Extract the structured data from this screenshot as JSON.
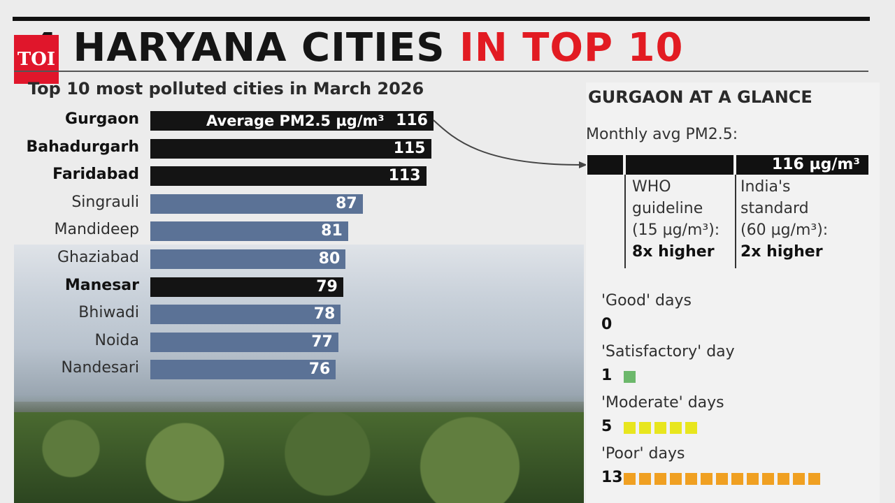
{
  "header": {
    "title_leading": "4",
    "title_dark": "HARYANA CITIES",
    "title_red": "IN TOP 10",
    "logo_text": "TOI",
    "subtitle": "Top 10 most polluted cities in March 2026"
  },
  "colors": {
    "highlight_bar": "#141414",
    "other_bar": "#5b7296",
    "title_red": "#e21b22",
    "logo_red": "#e0162b",
    "satisfactory": "#6cb86b",
    "moderate": "#e8e61e",
    "poor": "#f0a022"
  },
  "chart_data": {
    "type": "bar",
    "orientation": "horizontal",
    "title": "Top 10 most polluted cities in March 2026",
    "bar_note": "Average PM2.5 µg/m³",
    "categories": [
      "Gurgaon",
      "Bahadurgarh",
      "Faridabad",
      "Singrauli",
      "Mandideep",
      "Ghaziabad",
      "Manesar",
      "Bhiwadi",
      "Noida",
      "Nandesari"
    ],
    "values": [
      116,
      115,
      113,
      87,
      81,
      80,
      79,
      78,
      77,
      76
    ],
    "highlighted": [
      true,
      true,
      true,
      false,
      false,
      false,
      true,
      false,
      false,
      false
    ],
    "xlim": [
      0,
      116
    ],
    "grid": false
  },
  "glance": {
    "title": "GURGAON AT A GLANCE",
    "subtitle": "Monthly avg PM2.5:",
    "value_label": "116 µg/m³",
    "who": {
      "line1": "WHO",
      "line2": "guideline",
      "line3": "(15 µg/m³):",
      "result": "8x higher"
    },
    "india": {
      "line1": "India's",
      "line2": "standard",
      "line3": "(60 µg/m³):",
      "result": "2x higher"
    },
    "days": [
      {
        "label": "'Good' days",
        "count": "0",
        "n": 0,
        "color": "#6cb86b"
      },
      {
        "label": "'Satisfactory' day",
        "count": "1",
        "n": 1,
        "color": "#6cb86b"
      },
      {
        "label": "'Moderate' days",
        "count": "5",
        "n": 5,
        "color": "#e8e61e"
      },
      {
        "label": "'Poor' days",
        "count": "13",
        "n": 13,
        "color": "#f0a022"
      }
    ]
  }
}
